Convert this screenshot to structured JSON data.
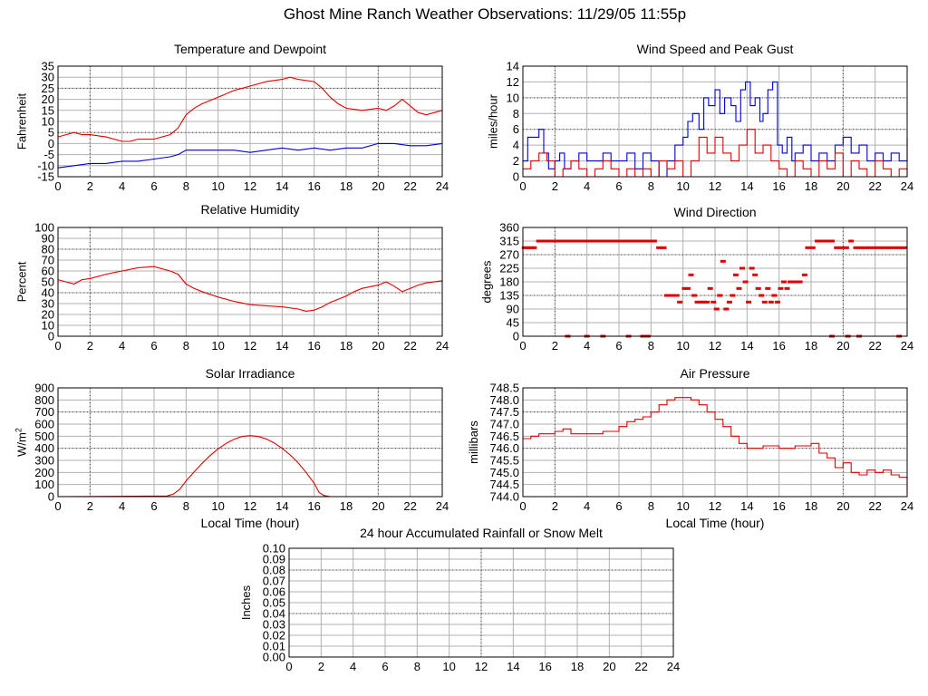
{
  "page_title": "Ghost Mine Ranch Weather Observations: 11/29/05 11:55p",
  "colors": {
    "series_primary": "#dd0000",
    "series_secondary": "#0000cc",
    "grid": "#b0b0b0",
    "axis": "#000000"
  },
  "chart_data": [
    {
      "id": "temperature",
      "type": "line",
      "title": "Temperature and Dewpoint",
      "ylabel": "Fahrenheit",
      "xlabel": "",
      "ylim": [
        -15,
        35
      ],
      "yticks": [
        -15,
        -10,
        -5,
        0,
        5,
        10,
        15,
        20,
        25,
        30,
        35
      ],
      "ytick_labels": [
        "-15",
        "-10",
        "-5",
        "0",
        "5",
        "10",
        "15",
        "20",
        "25",
        "30",
        "35"
      ],
      "xlim": [
        0,
        24
      ],
      "xticks": [
        0,
        2,
        4,
        6,
        8,
        10,
        12,
        14,
        16,
        18,
        20,
        22,
        24
      ],
      "grid": true,
      "series": [
        {
          "style": "line",
          "color": "#dd0000",
          "x": [
            0,
            0.5,
            1,
            1.5,
            2,
            3,
            3.5,
            4,
            4.5,
            5,
            6,
            7,
            7.5,
            8,
            8.5,
            9,
            10,
            11,
            12,
            13,
            14,
            14.5,
            15,
            16,
            16.5,
            17,
            17.5,
            18,
            19,
            20,
            20.5,
            21,
            21.5,
            22,
            22.5,
            23,
            24
          ],
          "y": [
            3,
            4,
            5,
            4,
            4,
            3,
            2,
            1,
            1,
            2,
            2,
            4,
            7,
            13,
            16,
            18,
            21,
            24,
            26,
            28,
            29,
            30,
            29,
            28,
            25,
            21,
            18,
            16,
            15,
            16,
            15,
            17,
            20,
            17,
            14,
            13,
            15
          ]
        },
        {
          "style": "line",
          "color": "#0000cc",
          "x": [
            0,
            1,
            2,
            3,
            4,
            5,
            6,
            7,
            7.5,
            8,
            9,
            10,
            11,
            12,
            13,
            14,
            15,
            16,
            17,
            18,
            19,
            20,
            21,
            22,
            23,
            24
          ],
          "y": [
            -11,
            -10,
            -9,
            -9,
            -8,
            -8,
            -7,
            -6,
            -5,
            -3,
            -3,
            -3,
            -3,
            -4,
            -3,
            -2,
            -3,
            -2,
            -3,
            -2,
            -2,
            0,
            0,
            -1,
            -1,
            0
          ]
        }
      ]
    },
    {
      "id": "wind_speed",
      "type": "line",
      "title": "Wind Speed and Peak Gust",
      "ylabel": "miles/hour",
      "xlabel": "",
      "ylim": [
        0,
        14
      ],
      "yticks": [
        0,
        2,
        4,
        6,
        8,
        10,
        12,
        14
      ],
      "ytick_labels": [
        "0",
        "2",
        "4",
        "6",
        "8",
        "10",
        "12",
        "14"
      ],
      "xlim": [
        0,
        24
      ],
      "xticks": [
        0,
        2,
        4,
        6,
        8,
        10,
        12,
        14,
        16,
        18,
        20,
        22,
        24
      ],
      "grid": true,
      "series": [
        {
          "style": "step",
          "color": "#0000cc",
          "x": [
            0,
            0.3,
            0.5,
            1,
            1.3,
            1.6,
            2,
            2.3,
            2.6,
            3,
            3.5,
            4,
            4.5,
            5,
            5.5,
            6,
            6.5,
            7,
            7.5,
            8,
            8.5,
            9,
            9.5,
            10,
            10.3,
            10.6,
            11,
            11.3,
            11.6,
            12,
            12.3,
            12.6,
            13,
            13.3,
            13.6,
            13.9,
            14.2,
            14.5,
            14.8,
            15,
            15.3,
            15.6,
            15.9,
            16.2,
            16.5,
            16.8,
            17,
            17.5,
            18,
            18.5,
            19,
            19.5,
            20,
            20.5,
            21,
            21.5,
            22,
            22.5,
            23,
            23.5,
            24
          ],
          "y": [
            2,
            5,
            5,
            6,
            3,
            1,
            2,
            3,
            1,
            2,
            3,
            2,
            2,
            3,
            2,
            2,
            3,
            1,
            3,
            2,
            0,
            2,
            4,
            5,
            7,
            8,
            6,
            10,
            9,
            11,
            8,
            10,
            9,
            7,
            11,
            12,
            9,
            10,
            7,
            8,
            11,
            12,
            4,
            3,
            5,
            2,
            3,
            4,
            2,
            3,
            2,
            4,
            5,
            3,
            4,
            2,
            3,
            2,
            3,
            2,
            5
          ]
        },
        {
          "style": "step",
          "color": "#dd0000",
          "x": [
            0,
            0.5,
            1,
            1.5,
            2,
            2.5,
            3,
            3.5,
            4,
            4.5,
            5,
            5.5,
            6,
            6.5,
            7,
            7.5,
            8,
            8.5,
            9,
            9.5,
            10,
            10.5,
            11,
            11.5,
            12,
            12.5,
            13,
            13.5,
            14,
            14.5,
            15,
            15.5,
            16,
            16.5,
            17,
            17.5,
            18,
            18.5,
            19,
            19.5,
            20,
            20.5,
            21,
            21.5,
            22,
            22.5,
            23,
            23.5,
            24
          ],
          "y": [
            1,
            2,
            3,
            2,
            0,
            1,
            2,
            1,
            0,
            1,
            2,
            1,
            0,
            1,
            0,
            1,
            0,
            2,
            1,
            2,
            0,
            2,
            5,
            3,
            5,
            3,
            2,
            4,
            6,
            3,
            4,
            2,
            1,
            0,
            2,
            1,
            0,
            2,
            1,
            3,
            0,
            2,
            1,
            0,
            2,
            1,
            0,
            1,
            0
          ]
        }
      ]
    },
    {
      "id": "humidity",
      "type": "line",
      "title": "Relative Humidity",
      "ylabel": "Percent",
      "xlabel": "",
      "ylim": [
        0,
        100
      ],
      "yticks": [
        0,
        10,
        20,
        30,
        40,
        50,
        60,
        70,
        80,
        90,
        100
      ],
      "ytick_labels": [
        "0",
        "10",
        "20",
        "30",
        "40",
        "50",
        "60",
        "70",
        "80",
        "90",
        "100"
      ],
      "xlim": [
        0,
        24
      ],
      "xticks": [
        0,
        2,
        4,
        6,
        8,
        10,
        12,
        14,
        16,
        18,
        20,
        22,
        24
      ],
      "grid": true,
      "series": [
        {
          "style": "line",
          "color": "#dd0000",
          "x": [
            0,
            0.5,
            1,
            1.5,
            2,
            3,
            4,
            5,
            6,
            7,
            7.5,
            8,
            8.5,
            9,
            10,
            11,
            12,
            13,
            14,
            15,
            15.5,
            16,
            16.5,
            17,
            17.5,
            18,
            18.5,
            19,
            20,
            20.5,
            21,
            21.5,
            22,
            22.5,
            23,
            24
          ],
          "y": [
            52,
            50,
            48,
            52,
            53,
            57,
            60,
            63,
            64,
            60,
            57,
            48,
            44,
            41,
            36,
            32,
            29,
            28,
            27,
            25,
            23,
            24,
            27,
            31,
            34,
            37,
            41,
            44,
            47,
            50,
            46,
            41,
            44,
            47,
            49,
            51
          ]
        }
      ]
    },
    {
      "id": "wind_direction",
      "type": "scatter",
      "title": "Wind Direction",
      "ylabel": "degrees",
      "xlabel": "",
      "ylim": [
        0,
        360
      ],
      "yticks": [
        0,
        45,
        90,
        135,
        180,
        225,
        270,
        315,
        360
      ],
      "ytick_labels": [
        "0",
        "45",
        "90",
        "135",
        "180",
        "225",
        "270",
        "315",
        "360"
      ],
      "xlim": [
        0,
        24
      ],
      "xticks": [
        0,
        2,
        4,
        6,
        8,
        10,
        12,
        14,
        16,
        18,
        20,
        22,
        24
      ],
      "grid": true,
      "series": [
        {
          "style": "dash",
          "color": "#dd0000",
          "x": [
            0.1,
            0.3,
            0.5,
            0.7,
            1.0,
            1.3,
            1.6,
            1.9,
            2.2,
            2.5,
            2.8,
            3.1,
            3.4,
            3.7,
            4.0,
            4.3,
            4.6,
            4.9,
            5.2,
            5.5,
            5.8,
            6.1,
            6.4,
            6.7,
            7.0,
            7.3,
            7.6,
            7.9,
            8.2,
            8.5,
            8.8,
            9.0,
            9.3,
            9.6,
            9.8,
            10.1,
            10.3,
            10.5,
            10.7,
            10.9,
            11.1,
            11.3,
            11.5,
            11.7,
            11.9,
            12.1,
            12.3,
            12.5,
            12.7,
            12.9,
            13.1,
            13.3,
            13.5,
            13.7,
            13.9,
            14.1,
            14.3,
            14.5,
            14.7,
            14.9,
            15.1,
            15.3,
            15.5,
            15.7,
            15.9,
            16.1,
            16.3,
            16.5,
            16.7,
            16.9,
            17.1,
            17.3,
            17.6,
            17.8,
            18.1,
            18.4,
            18.7,
            19.0,
            19.3,
            19.6,
            19.9,
            20.2,
            20.5,
            20.8,
            21.1,
            21.4,
            21.7,
            22.0,
            22.3,
            22.6,
            22.9,
            23.2,
            23.5,
            23.8,
            2.8,
            4.0,
            5.0,
            6.6,
            7.5,
            7.8,
            19.3,
            20.3,
            21.0,
            23.5
          ],
          "y": [
            293,
            293,
            293,
            293,
            315,
            315,
            315,
            315,
            315,
            315,
            315,
            315,
            315,
            315,
            315,
            315,
            315,
            315,
            315,
            315,
            315,
            315,
            315,
            315,
            315,
            315,
            315,
            315,
            315,
            293,
            293,
            135,
            135,
            135,
            113,
            158,
            158,
            203,
            135,
            113,
            113,
            113,
            113,
            158,
            113,
            90,
            135,
            248,
            90,
            113,
            135,
            203,
            158,
            225,
            180,
            113,
            225,
            203,
            158,
            135,
            113,
            158,
            113,
            135,
            113,
            158,
            180,
            158,
            180,
            180,
            180,
            180,
            203,
            293,
            293,
            315,
            315,
            315,
            315,
            293,
            293,
            293,
            315,
            293,
            293,
            293,
            293,
            293,
            293,
            293,
            293,
            293,
            293,
            293,
            0,
            0,
            0,
            0,
            0,
            0,
            0,
            0,
            0,
            0
          ]
        }
      ]
    },
    {
      "id": "solar",
      "type": "line",
      "title": "Solar Irradiance",
      "ylabel": "W/m",
      "ylabel_sup": "2",
      "xlabel": "Local Time (hour)",
      "ylim": [
        0,
        900
      ],
      "yticks": [
        0,
        100,
        200,
        300,
        400,
        500,
        600,
        700,
        800,
        900
      ],
      "ytick_labels": [
        "0",
        "100",
        "200",
        "300",
        "400",
        "500",
        "600",
        "700",
        "800",
        "900"
      ],
      "xlim": [
        0,
        24
      ],
      "xticks": [
        0,
        2,
        4,
        6,
        8,
        10,
        12,
        14,
        16,
        18,
        20,
        22,
        24
      ],
      "grid": true,
      "series": [
        {
          "style": "line",
          "color": "#dd0000",
          "x": [
            0,
            6.8,
            7.2,
            7.6,
            8,
            8.5,
            9,
            9.5,
            10,
            10.5,
            11,
            11.5,
            12,
            12.5,
            13,
            13.5,
            14,
            14.5,
            15,
            15.5,
            16,
            16.3,
            16.6,
            17,
            24
          ],
          "y": [
            0,
            5,
            20,
            60,
            130,
            205,
            275,
            340,
            395,
            440,
            475,
            498,
            505,
            498,
            478,
            445,
            400,
            345,
            280,
            200,
            110,
            35,
            10,
            0,
            0
          ]
        }
      ]
    },
    {
      "id": "pressure",
      "type": "line",
      "title": "Air Pressure",
      "ylabel": "millibars",
      "xlabel": "Local Time (hour)",
      "ylim": [
        744.0,
        748.5
      ],
      "yticks": [
        744.0,
        744.5,
        745.0,
        745.5,
        746.0,
        746.5,
        747.0,
        747.5,
        748.0,
        748.5
      ],
      "ytick_labels": [
        "744.0",
        "744.5",
        "745.0",
        "745.5",
        "746.0",
        "746.5",
        "747.0",
        "747.5",
        "748.0",
        "748.5"
      ],
      "xlim": [
        0,
        24
      ],
      "xticks": [
        0,
        2,
        4,
        6,
        8,
        10,
        12,
        14,
        16,
        18,
        20,
        22,
        24
      ],
      "grid": true,
      "series": [
        {
          "style": "step",
          "color": "#dd0000",
          "x": [
            0,
            0.5,
            1,
            2,
            2.5,
            3,
            4,
            5,
            6,
            6.5,
            7,
            7.5,
            8,
            8.5,
            9,
            9.5,
            10,
            10.5,
            11,
            11.5,
            12,
            12.5,
            13,
            13.5,
            14,
            15,
            16,
            17,
            18,
            18.5,
            19,
            19.5,
            20,
            20.5,
            21,
            21.5,
            22,
            22.5,
            23,
            23.5,
            24
          ],
          "y": [
            746.4,
            746.5,
            746.6,
            746.7,
            746.8,
            746.6,
            746.6,
            746.7,
            746.9,
            747.1,
            747.2,
            747.3,
            747.5,
            747.8,
            748.0,
            748.1,
            748.1,
            748.0,
            747.8,
            747.5,
            747.2,
            746.9,
            746.5,
            746.2,
            746.0,
            746.1,
            746.0,
            746.1,
            746.2,
            745.8,
            745.6,
            745.2,
            745.4,
            745.0,
            744.9,
            745.1,
            745.0,
            745.1,
            744.9,
            744.8,
            744.2
          ]
        }
      ]
    },
    {
      "id": "rainfall",
      "type": "line",
      "title": "24 hour Accumulated Rainfall or Snow Melt",
      "ylabel": "Inches",
      "xlabel": "",
      "ylim": [
        0,
        0.1
      ],
      "yticks": [
        0,
        0.01,
        0.02,
        0.03,
        0.04,
        0.05,
        0.06,
        0.07,
        0.08,
        0.09,
        0.1
      ],
      "ytick_labels": [
        "0.00",
        "0.01",
        "0.02",
        "0.03",
        "0.04",
        "0.05",
        "0.06",
        "0.07",
        "0.08",
        "0.09",
        "0.10"
      ],
      "xlim": [
        0,
        24
      ],
      "xticks": [
        0,
        2,
        4,
        6,
        8,
        10,
        12,
        14,
        16,
        18,
        20,
        22,
        24
      ],
      "grid": true,
      "series": [
        {
          "style": "line",
          "color": "#dd0000",
          "x": [
            0,
            24
          ],
          "y": [
            0,
            0
          ]
        }
      ]
    }
  ]
}
